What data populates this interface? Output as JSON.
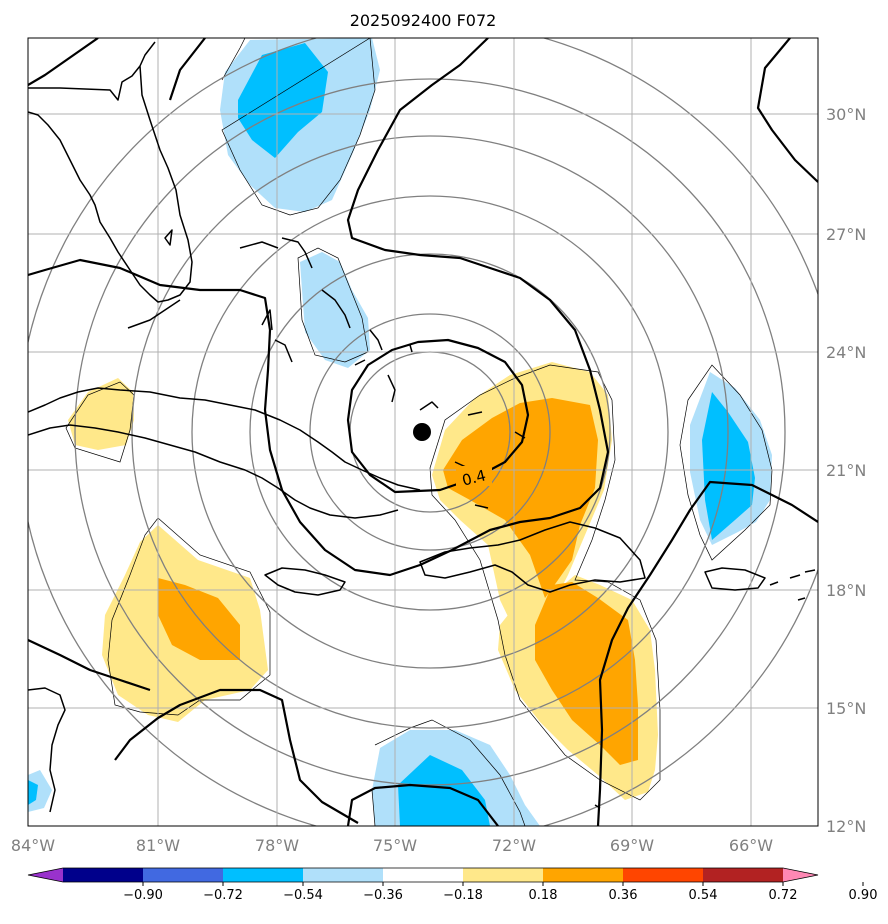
{
  "title": "2025092400 F072",
  "map": {
    "lon_labels": [
      "84°W",
      "81°W",
      "78°W",
      "75°W",
      "72°W",
      "69°W",
      "66°W"
    ],
    "lat_labels": [
      "30°N",
      "27°N",
      "24°N",
      "21°N",
      "18°N",
      "15°N",
      "12°N"
    ],
    "contour_label": "0.4",
    "center_marker": "storm-center-dot"
  },
  "colorbar": {
    "tick_labels": [
      "−0.90",
      "−0.72",
      "−0.54",
      "−0.36",
      "−0.18",
      "0.18",
      "0.36",
      "0.54",
      "0.72",
      "0.90"
    ],
    "colors": [
      "#9932cc",
      "#00008b",
      "#4169e1",
      "#00bfff",
      "#b0e0fa",
      "#ffffff",
      "#ffe88a",
      "#ffa500",
      "#ff4500",
      "#b22222",
      "#ff88b4"
    ]
  },
  "shading_colors": {
    "light_blue": "#b0e0fa",
    "blue": "#00bfff",
    "light_yellow": "#ffe88a",
    "orange": "#ffa500"
  }
}
